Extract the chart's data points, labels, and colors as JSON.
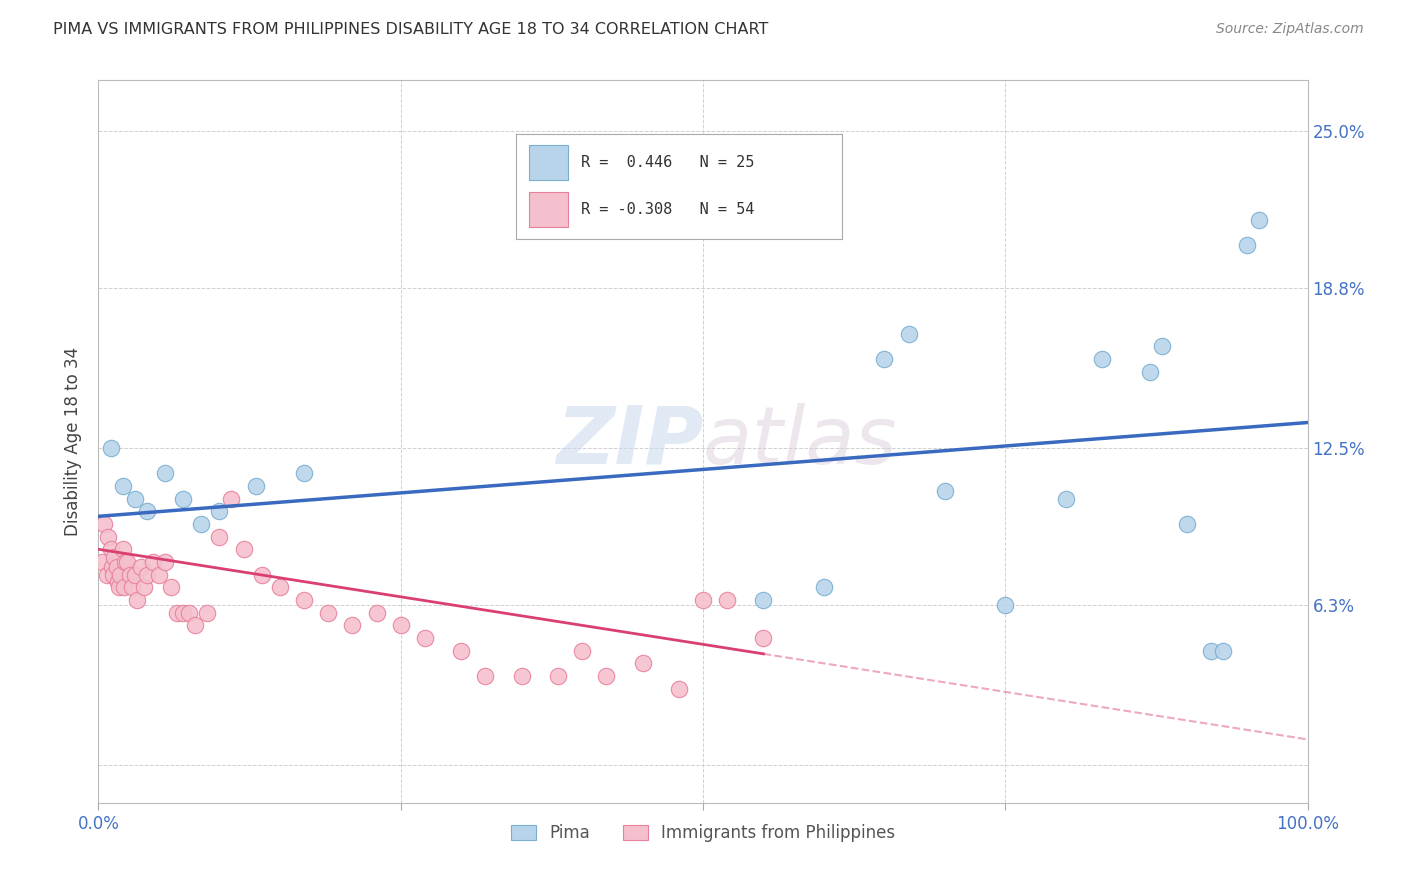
{
  "title": "PIMA VS IMMIGRANTS FROM PHILIPPINES DISABILITY AGE 18 TO 34 CORRELATION CHART",
  "source": "Source: ZipAtlas.com",
  "ylabel": "Disability Age 18 to 34",
  "xlim": [
    0,
    100
  ],
  "ylim": [
    -1.5,
    27
  ],
  "yticks": [
    0,
    6.3,
    12.5,
    18.8,
    25.0
  ],
  "ytick_labels": [
    "",
    "6.3%",
    "12.5%",
    "18.8%",
    "25.0%"
  ],
  "watermark_zip": "ZIP",
  "watermark_atlas": "atlas",
  "pima_color": "#b8d4ea",
  "pima_edge_color": "#7aaed0",
  "philippines_color": "#f5c0ce",
  "philippines_edge_color": "#e8809a",
  "blue_line_color": "#3a6abf",
  "pink_line_color": "#d94070",
  "grid_color": "#d0d0d0",
  "bg_color": "#ffffff",
  "pima_x": [
    1.0,
    2.0,
    3.0,
    4.0,
    5.5,
    7.0,
    8.5,
    10.0,
    13.0,
    17.0,
    55.0,
    60.0,
    65.0,
    67.0,
    70.0,
    75.0,
    80.0,
    83.0,
    87.0,
    88.0,
    90.0,
    92.0,
    93.0,
    95.0,
    96.0
  ],
  "pima_y": [
    12.5,
    11.0,
    10.5,
    10.0,
    11.5,
    10.5,
    9.5,
    10.0,
    11.0,
    11.5,
    6.5,
    7.0,
    16.0,
    17.0,
    10.8,
    6.3,
    10.5,
    16.0,
    15.5,
    16.5,
    9.5,
    4.5,
    4.5,
    20.5,
    21.5
  ],
  "philippines_x": [
    0.3,
    0.5,
    0.7,
    0.8,
    1.0,
    1.1,
    1.2,
    1.3,
    1.5,
    1.6,
    1.7,
    1.8,
    2.0,
    2.1,
    2.2,
    2.4,
    2.6,
    2.8,
    3.0,
    3.2,
    3.5,
    3.8,
    4.0,
    4.5,
    5.0,
    5.5,
    6.0,
    6.5,
    7.0,
    7.5,
    8.0,
    9.0,
    10.0,
    11.0,
    12.0,
    13.5,
    15.0,
    17.0,
    19.0,
    21.0,
    23.0,
    25.0,
    27.0,
    30.0,
    32.0,
    35.0,
    38.0,
    40.0,
    42.0,
    45.0,
    48.0,
    50.0,
    52.0,
    55.0
  ],
  "philippines_y": [
    8.0,
    9.5,
    7.5,
    9.0,
    8.5,
    7.8,
    7.5,
    8.2,
    7.8,
    7.2,
    7.0,
    7.5,
    8.5,
    7.0,
    8.0,
    8.0,
    7.5,
    7.0,
    7.5,
    6.5,
    7.8,
    7.0,
    7.5,
    8.0,
    7.5,
    8.0,
    7.0,
    6.0,
    6.0,
    6.0,
    5.5,
    6.0,
    9.0,
    10.5,
    8.5,
    7.5,
    7.0,
    6.5,
    6.0,
    5.5,
    6.0,
    5.5,
    5.0,
    4.5,
    3.5,
    3.5,
    3.5,
    4.5,
    3.5,
    4.0,
    3.0,
    6.5,
    6.5,
    5.0
  ],
  "pima_R": 0.446,
  "pima_N": 25,
  "philippines_R": -0.308,
  "philippines_N": 54,
  "blue_line_x0": 0,
  "blue_line_y0": 9.8,
  "blue_line_x1": 100,
  "blue_line_y1": 13.5,
  "pink_line_x0": 0,
  "pink_line_y0": 8.5,
  "pink_line_x1": 100,
  "pink_line_y1": 1.0,
  "pink_solid_end": 55
}
